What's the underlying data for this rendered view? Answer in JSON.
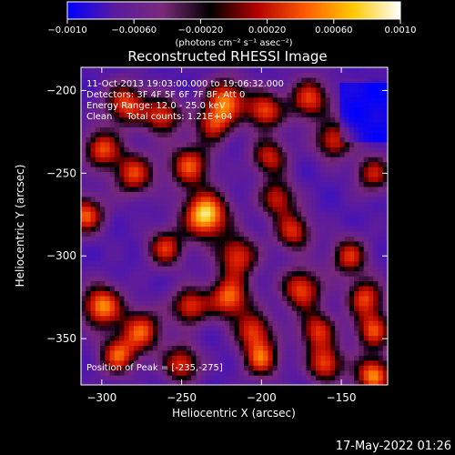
{
  "chart_data": {
    "type": "heatmap",
    "title": "Reconstructed RHESSI Image",
    "xlabel": "Heliocentric X (arcsec)",
    "ylabel": "Heliocentric Y (arcsec)",
    "xlim": [
      -313,
      -121
    ],
    "ylim": [
      -378,
      -186
    ],
    "xticks": [
      -300,
      -250,
      -200,
      -150
    ],
    "xtick_labels": [
      "−300",
      "−250",
      "−200",
      "−150"
    ],
    "yticks": [
      -200,
      -250,
      -300,
      -350
    ],
    "ytick_labels": [
      "−200",
      "−250",
      "−300",
      "−350"
    ],
    "colorbar": {
      "range": [
        -0.001,
        0.001
      ],
      "ticks": [
        -0.001,
        -0.0006,
        -0.0002,
        0.0002,
        0.0006,
        0.001
      ],
      "tick_labels": [
        "−0.0010",
        "−0.00060",
        "−0.00020",
        "0.00020",
        "0.00060",
        "0.0010"
      ],
      "unit_label": "(photons cm⁻² s⁻¹ asec⁻²)",
      "colors": [
        "#0000ff",
        "#5a1aa0",
        "#7a2a7a",
        "#000000",
        "#b40000",
        "#ff5a00",
        "#ffc800",
        "#ffffff"
      ]
    },
    "annotations": [
      "11-Oct-2013 19:03:00.000 to 19:06:32.000",
      "Detectors: 3F 4F 5F 6F 7F 8F, Att 0",
      "Energy Range: 12.0 - 25.0 keV",
      "Clean     Total counts: 1.21E+04"
    ],
    "peak_label": "Position of Peak = [-235,-275]",
    "peak": [
      -235,
      -275
    ],
    "sources": [
      {
        "x": -235,
        "y": -275,
        "v": 1.0,
        "s": 10
      },
      {
        "x": -285,
        "y": -208,
        "v": 0.55,
        "s": 9
      },
      {
        "x": -262,
        "y": -215,
        "v": 0.5,
        "s": 8
      },
      {
        "x": -222,
        "y": -205,
        "v": 0.6,
        "s": 9
      },
      {
        "x": -198,
        "y": -212,
        "v": 0.55,
        "s": 8
      },
      {
        "x": -170,
        "y": -205,
        "v": 0.5,
        "s": 9
      },
      {
        "x": -155,
        "y": -230,
        "v": 0.45,
        "s": 8
      },
      {
        "x": -245,
        "y": -245,
        "v": 0.55,
        "s": 9
      },
      {
        "x": -280,
        "y": -250,
        "v": 0.5,
        "s": 9
      },
      {
        "x": -300,
        "y": -235,
        "v": 0.55,
        "s": 8
      },
      {
        "x": -310,
        "y": -275,
        "v": 0.6,
        "s": 8
      },
      {
        "x": -195,
        "y": -240,
        "v": 0.4,
        "s": 8
      },
      {
        "x": -260,
        "y": -295,
        "v": 0.45,
        "s": 8
      },
      {
        "x": -215,
        "y": -300,
        "v": 0.5,
        "s": 9
      },
      {
        "x": -180,
        "y": -285,
        "v": 0.45,
        "s": 8
      },
      {
        "x": -145,
        "y": -300,
        "v": 0.45,
        "s": 8
      },
      {
        "x": -300,
        "y": -330,
        "v": 0.75,
        "s": 9
      },
      {
        "x": -275,
        "y": -345,
        "v": 0.55,
        "s": 9
      },
      {
        "x": -245,
        "y": -330,
        "v": 0.5,
        "s": 8
      },
      {
        "x": -220,
        "y": -325,
        "v": 0.65,
        "s": 9
      },
      {
        "x": -175,
        "y": -320,
        "v": 0.55,
        "s": 9
      },
      {
        "x": -135,
        "y": -325,
        "v": 0.5,
        "s": 8
      },
      {
        "x": -290,
        "y": -360,
        "v": 0.55,
        "s": 8
      },
      {
        "x": -250,
        "y": -365,
        "v": 0.5,
        "s": 8
      },
      {
        "x": -200,
        "y": -362,
        "v": 0.55,
        "s": 8
      },
      {
        "x": -160,
        "y": -365,
        "v": 0.55,
        "s": 8
      },
      {
        "x": -130,
        "y": -372,
        "v": 0.75,
        "s": 8
      },
      {
        "x": -205,
        "y": -345,
        "v": 0.45,
        "s": 8
      },
      {
        "x": -165,
        "y": -345,
        "v": 0.45,
        "s": 8
      },
      {
        "x": -130,
        "y": -345,
        "v": 0.5,
        "s": 8
      },
      {
        "x": -190,
        "y": -265,
        "v": 0.4,
        "s": 8
      },
      {
        "x": -230,
        "y": -220,
        "v": 0.4,
        "s": 8
      },
      {
        "x": -130,
        "y": -250,
        "v": 0.35,
        "s": 8
      }
    ]
  },
  "footer": {
    "timestamp": "17-May-2022 01:26"
  }
}
